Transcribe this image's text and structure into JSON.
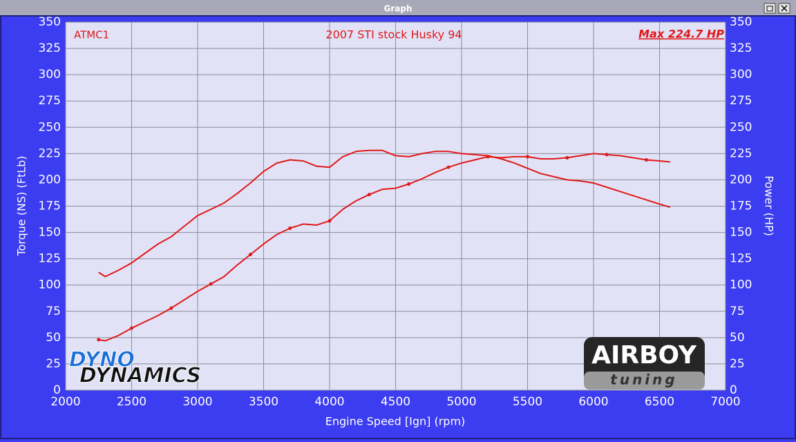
{
  "window_title": "Graph",
  "chart_data": {
    "type": "line",
    "title": "2007 STI stock Husky 94",
    "run_label": "ATMC1",
    "max_label": "Max 224.7 HP",
    "xlabel": "Engine Speed [Ign] (rpm)",
    "ylabel": "Torque (NS) (FtLb)",
    "y2label": "Power (HP)",
    "logos": [
      "DYNO",
      "DYNAMICS",
      "AIRBOY",
      "tuning"
    ],
    "grid": true,
    "x": [
      2250,
      2300,
      2400,
      2500,
      2600,
      2700,
      2800,
      2900,
      3000,
      3100,
      3200,
      3300,
      3400,
      3500,
      3600,
      3700,
      3800,
      3900,
      4000,
      4100,
      4200,
      4300,
      4400,
      4500,
      4600,
      4700,
      4800,
      4900,
      5000,
      5100,
      5200,
      5300,
      5400,
      5500,
      5600,
      5700,
      5800,
      5900,
      6000,
      6100,
      6200,
      6300,
      6400,
      6500,
      6580
    ],
    "series": [
      {
        "color": "#e01818",
        "values": [
          112,
          108,
          114,
          121,
          130,
          139,
          146,
          156,
          166,
          172,
          178,
          187,
          197,
          208,
          216,
          219,
          218,
          213,
          212,
          222,
          227,
          228,
          228,
          223,
          222,
          225,
          227,
          227,
          225,
          224,
          223,
          220,
          216,
          211,
          206,
          203,
          200,
          199,
          197,
          193,
          189,
          185,
          181,
          177,
          174
        ]
      },
      {
        "color": "#e01818",
        "axis": "y2",
        "values": [
          48,
          47,
          52,
          59,
          65,
          71,
          78,
          86,
          94,
          101,
          108,
          119,
          129,
          139,
          148,
          154,
          158,
          157,
          161,
          172,
          180,
          186,
          191,
          192,
          196,
          201,
          207,
          212,
          216,
          219,
          222,
          221,
          222,
          222,
          220,
          220,
          221,
          223,
          225,
          224,
          223,
          221,
          219,
          218,
          217
        ]
      }
    ],
    "xlim": [
      2000,
      7000
    ],
    "xticks": [
      2000,
      2500,
      3000,
      3500,
      4000,
      4500,
      5000,
      5500,
      6000,
      6500,
      7000
    ],
    "ylim": [
      0,
      350
    ],
    "yticks": [
      0,
      25,
      50,
      75,
      100,
      125,
      150,
      175,
      200,
      225,
      250,
      275,
      300,
      325,
      350
    ],
    "y2lim": [
      0,
      350
    ],
    "y2ticks": [
      0,
      25,
      50,
      75,
      100,
      125,
      150,
      175,
      200,
      225,
      250,
      275,
      300,
      325,
      350
    ]
  }
}
